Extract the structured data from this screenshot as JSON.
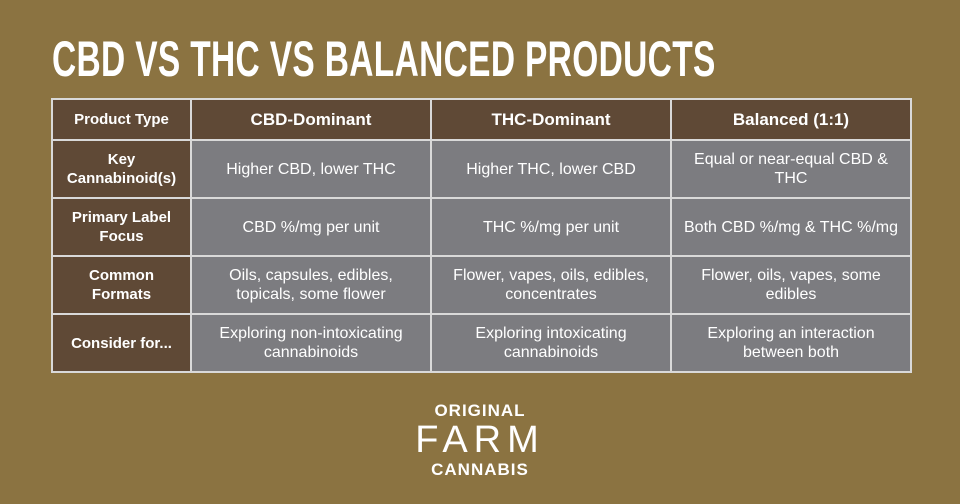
{
  "header": {
    "title": "CBD VS THC VS BALANCED PRODUCTS"
  },
  "table": {
    "columns": [
      "Product Type",
      "CBD-Dominant",
      "THC-Dominant",
      "Balanced (1:1)"
    ],
    "rows": [
      [
        "Key Cannabinoid(s)",
        "Higher CBD, lower THC",
        "Higher THC, lower CBD",
        "Equal or near-equal CBD & THC"
      ],
      [
        "Primary Label Focus",
        "CBD %/mg per unit",
        "THC %/mg per unit",
        "Both CBD %/mg & THC %/mg"
      ],
      [
        "Common Formats",
        "Oils, capsules, edibles, topicals, some flower",
        "Flower, vapes, oils, edibles, concentrates",
        "Flower, oils, vapes, some edibles"
      ],
      [
        "Consider for...",
        "Exploring non-intoxicating cannabinoids",
        "Exploring intoxicating cannabinoids",
        "Exploring an interaction between both"
      ]
    ]
  },
  "logo": {
    "line1": "ORIGINAL",
    "line2": "FARM",
    "line3": "CANNABIS"
  }
}
